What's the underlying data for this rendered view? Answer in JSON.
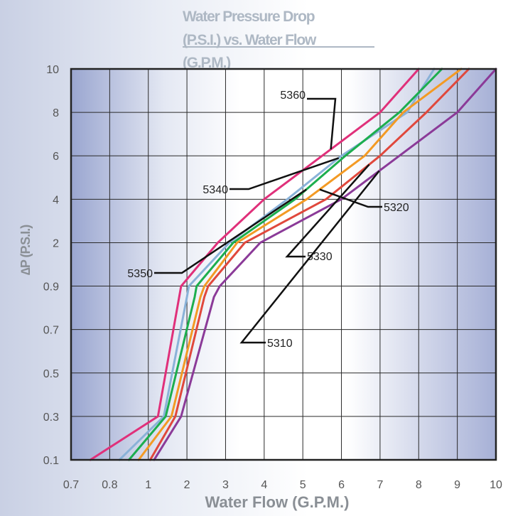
{
  "chart_data": {
    "type": "line",
    "title_lines": [
      "Water Pressure Drop",
      "(P.S.I.) vs. Water Flow",
      "(G.P.M.)"
    ],
    "xlabel": "Water Flow (G.P.M.)",
    "ylabel": "∆P (P.S.I.)",
    "x_ticks": [
      "0.7",
      "0.8",
      "1",
      "2",
      "3",
      "4",
      "5",
      "6",
      "7",
      "8",
      "9",
      "10"
    ],
    "y_ticks": [
      "0.1",
      "0.3",
      "0.5",
      "0.7",
      "0.9",
      "2",
      "4",
      "6",
      "8",
      "10"
    ],
    "grid": true,
    "series": [
      {
        "name": "5360",
        "color": "#e0307a",
        "label_tick": 6.3,
        "points": [
          [
            0.75,
            0.1
          ],
          [
            1.25,
            0.3
          ],
          [
            1.8,
            0.85
          ],
          [
            1.85,
            0.9
          ],
          [
            2.8,
            2
          ],
          [
            4,
            4
          ],
          [
            5.5,
            6
          ],
          [
            7.0,
            8
          ],
          [
            8.0,
            10
          ]
        ]
      },
      {
        "name": "5340",
        "color": "#8ab2d8",
        "label_tick": 5.9,
        "points": [
          [
            0.85,
            0.1
          ],
          [
            1.4,
            0.3
          ],
          [
            2.0,
            0.85
          ],
          [
            2.05,
            0.9
          ],
          [
            3.1,
            2
          ],
          [
            4.6,
            4
          ],
          [
            6.0,
            6
          ],
          [
            7.7,
            8
          ],
          [
            8.4,
            10
          ]
        ]
      },
      {
        "name": "5350",
        "color": "#1cae4e",
        "label_tick": 4.45,
        "points": [
          [
            0.9,
            0.1
          ],
          [
            1.45,
            0.3
          ],
          [
            2.2,
            0.85
          ],
          [
            2.25,
            0.9
          ],
          [
            3.2,
            2
          ],
          [
            4.8,
            4
          ],
          [
            6.1,
            6
          ],
          [
            7.5,
            8
          ],
          [
            8.6,
            10
          ]
        ]
      },
      {
        "name": "5320",
        "color": "#f39a24",
        "label_tick": 4.45,
        "points": [
          [
            0.95,
            0.1
          ],
          [
            1.6,
            0.3
          ],
          [
            2.35,
            0.85
          ],
          [
            2.45,
            0.9
          ],
          [
            3.3,
            2
          ],
          [
            5.1,
            4
          ],
          [
            6.6,
            6
          ],
          [
            7.6,
            8
          ],
          [
            9.1,
            10
          ]
        ]
      },
      {
        "name": "5330",
        "color": "#e0483c",
        "label_tick": 5.6,
        "points": [
          [
            1.05,
            0.1
          ],
          [
            1.7,
            0.3
          ],
          [
            2.45,
            0.85
          ],
          [
            2.55,
            0.9
          ],
          [
            3.5,
            2
          ],
          [
            5.6,
            4
          ],
          [
            7.0,
            6
          ],
          [
            8.2,
            8
          ],
          [
            9.3,
            10
          ]
        ]
      },
      {
        "name": "5310",
        "color": "#8b3a98",
        "label_tick": 5.3,
        "points": [
          [
            1.15,
            0.1
          ],
          [
            1.85,
            0.3
          ],
          [
            2.7,
            0.85
          ],
          [
            2.85,
            0.9
          ],
          [
            3.9,
            2
          ],
          [
            6.0,
            4
          ],
          [
            7.5,
            6
          ],
          [
            9.0,
            8
          ],
          [
            10.0,
            10
          ]
        ]
      }
    ],
    "callouts": [
      {
        "label": "5360",
        "series": "5360"
      },
      {
        "label": "5340",
        "series": "5340"
      },
      {
        "label": "5320",
        "series": "5320"
      },
      {
        "label": "5330",
        "series": "5330"
      },
      {
        "label": "5350",
        "series": "5350"
      },
      {
        "label": "5310",
        "series": "5310"
      }
    ]
  }
}
